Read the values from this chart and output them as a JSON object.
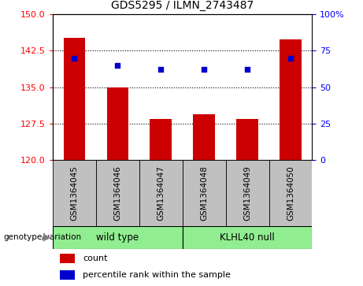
{
  "title": "GDS5295 / ILMN_2743487",
  "samples": [
    "GSM1364045",
    "GSM1364046",
    "GSM1364047",
    "GSM1364048",
    "GSM1364049",
    "GSM1364050"
  ],
  "counts": [
    145.2,
    135.0,
    128.5,
    129.5,
    128.5,
    144.8
  ],
  "percentiles": [
    70,
    65,
    62,
    62,
    62,
    70
  ],
  "ylim_left": [
    120,
    150
  ],
  "ylim_right": [
    0,
    100
  ],
  "yticks_left": [
    120,
    127.5,
    135,
    142.5,
    150
  ],
  "yticks_right": [
    0,
    25,
    50,
    75,
    100
  ],
  "bar_color": "#CC0000",
  "dot_color": "#0000CC",
  "bar_width": 0.5,
  "xlabel_area_color": "#C0C0C0",
  "group_area_color": "#90EE90",
  "legend_items": [
    {
      "label": "count",
      "color": "#CC0000"
    },
    {
      "label": "percentile rank within the sample",
      "color": "#0000CC"
    }
  ],
  "genotype_label": "genotype/variation"
}
